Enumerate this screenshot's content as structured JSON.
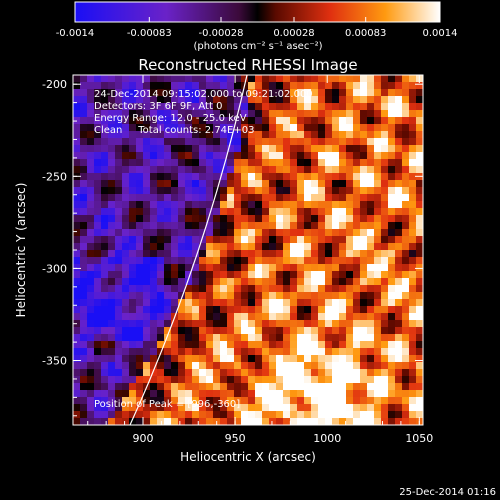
{
  "chart_data": {
    "type": "heatmap",
    "title": "Reconstructed RHESSI Image",
    "xlabel": "Heliocentric X (arcsec)",
    "ylabel": "Heliocentric Y (arcsec)",
    "xlim": [
      862,
      1052
    ],
    "ylim": [
      -385,
      -195
    ],
    "xticks": [
      900,
      950,
      1000,
      1050
    ],
    "yticks": [
      -200,
      -250,
      -300,
      -350
    ],
    "colorbar": {
      "min": -0.0014,
      "max": 0.0014,
      "ticks": [
        "-0.0014",
        "-0.00083",
        "-0.00028",
        "0.00028",
        "0.00083",
        "0.0014"
      ],
      "tick_values": [
        -0.0014,
        -0.00083,
        -0.00028,
        0.00028,
        0.00083,
        0.0014
      ],
      "units": "(photons cm⁻² s⁻¹ asec⁻²)"
    },
    "annotations": [
      "24-Dec-2014 09:15:02.000 to 09:21:02.000",
      "Detectors: 3F 6F 9F, Att 0",
      "Energy Range: 12.0 - 25.0 keV",
      "Clean     Total counts: 2.74E+03"
    ],
    "peak_label": "Position of Peak = [996,-360]",
    "peak": [
      996,
      -360
    ],
    "grid": false,
    "limb_arc": true
  },
  "footer_timestamp": "25-Dec-2014 01:16"
}
